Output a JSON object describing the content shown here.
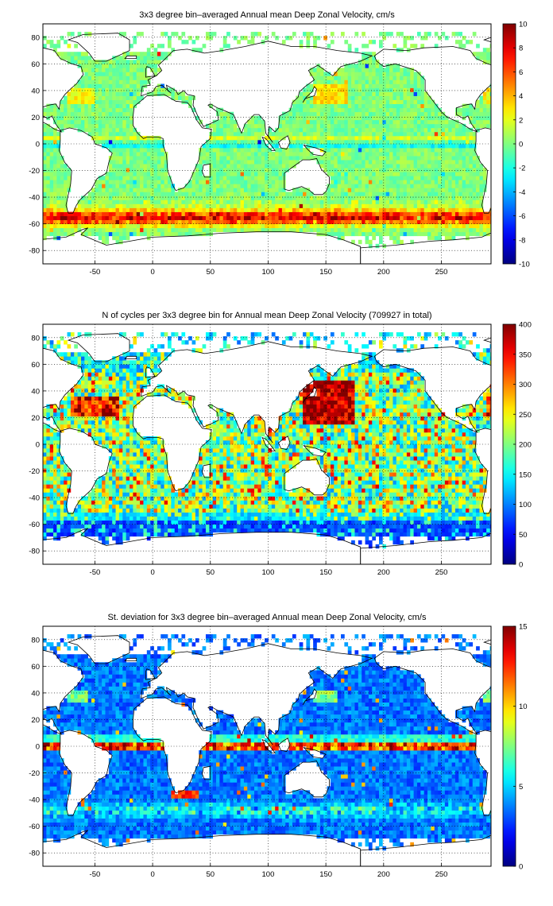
{
  "chart_data": [
    {
      "type": "heatmap",
      "title": "3x3 degree bin–averaged Annual mean Deep Zonal Velocity, cm/s",
      "xlim": [
        -95,
        293
      ],
      "ylim": [
        -90,
        90
      ],
      "xticks": [
        "-50",
        "0",
        "50",
        "100",
        "150",
        "200",
        "250"
      ],
      "yticks": [
        "80",
        "60",
        "40",
        "20",
        "0",
        "-20",
        "-40",
        "-60",
        "-80"
      ],
      "colorbar": {
        "min": -10,
        "max": 10,
        "ticks": [
          "10",
          "8",
          "6",
          "4",
          "2",
          "0",
          "-2",
          "-4",
          "-6",
          "-8",
          "-10"
        ]
      },
      "field": "mean_zonal_velocity"
    },
    {
      "type": "heatmap",
      "title": "N of cycles per 3x3 degree bin for Annual mean Deep Zonal Velocity (709927 in total)",
      "xlim": [
        -95,
        293
      ],
      "ylim": [
        -90,
        90
      ],
      "xticks": [
        "-50",
        "0",
        "50",
        "100",
        "150",
        "200",
        "250"
      ],
      "yticks": [
        "80",
        "60",
        "40",
        "20",
        "0",
        "-20",
        "-40",
        "-60",
        "-80"
      ],
      "colorbar": {
        "min": 0,
        "max": 400,
        "ticks": [
          "400",
          "350",
          "300",
          "250",
          "200",
          "150",
          "100",
          "50",
          "0"
        ]
      },
      "field": "cycle_count"
    },
    {
      "type": "heatmap",
      "title": "St. deviation for 3x3 degree bin–averaged Annual mean Deep Zonal Velocity, cm/s",
      "xlim": [
        -95,
        293
      ],
      "ylim": [
        -90,
        90
      ],
      "xticks": [
        "-50",
        "0",
        "50",
        "100",
        "150",
        "200",
        "250"
      ],
      "yticks": [
        "80",
        "60",
        "40",
        "20",
        "0",
        "-20",
        "-40",
        "-60",
        "-80"
      ],
      "colorbar": {
        "min": 0,
        "max": 15,
        "ticks": [
          "15",
          "10",
          "5",
          "0"
        ]
      },
      "field": "velocity_std"
    }
  ],
  "colors": {
    "land": "#ffffff",
    "coast": "#000000",
    "grid": "#000000",
    "colormap": "jet"
  }
}
